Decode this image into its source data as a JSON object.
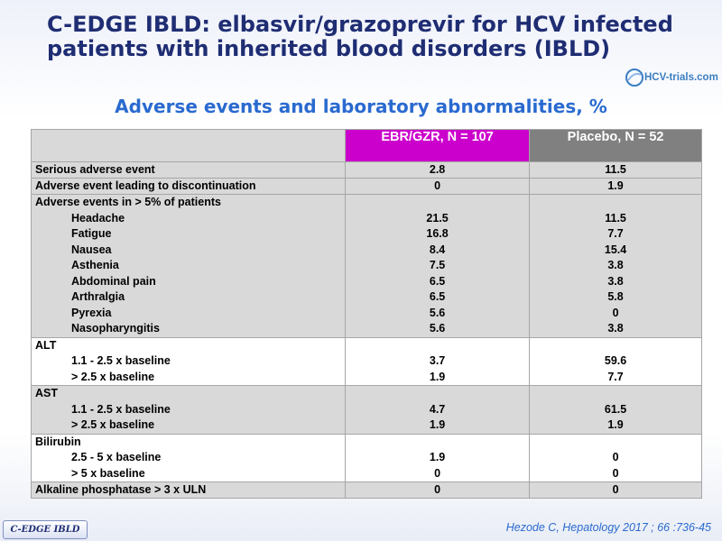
{
  "title_line1": "C-EDGE IBLD: elbasvir/grazoprevir for HCV infected",
  "title_line2": "patients with inherited blood disorders (IBLD)",
  "logo": "HCV-trials.com",
  "subtitle": "Adverse events and laboratory abnormalities, %",
  "table": {
    "col_ebr": "EBR/GZR, N = 107",
    "col_placebo": "Placebo, N = 52",
    "serious": {
      "label": "Serious adverse event",
      "ebr": "2.8",
      "placebo": "11.5"
    },
    "discontinuation": {
      "label": "Adverse event leading to discontinuation",
      "ebr": "0",
      "placebo": "1.9"
    },
    "ae_group": {
      "label": "Adverse events in > 5% of patients",
      "items": [
        {
          "label": "Headache",
          "ebr": "21.5",
          "placebo": "11.5"
        },
        {
          "label": "Fatigue",
          "ebr": "16.8",
          "placebo": "7.7"
        },
        {
          "label": "Nausea",
          "ebr": "8.4",
          "placebo": "15.4"
        },
        {
          "label": "Asthenia",
          "ebr": "7.5",
          "placebo": "3.8"
        },
        {
          "label": "Abdominal pain",
          "ebr": "6.5",
          "placebo": "3.8"
        },
        {
          "label": "Arthralgia",
          "ebr": "6.5",
          "placebo": "5.8"
        },
        {
          "label": "Pyrexia",
          "ebr": "5.6",
          "placebo": "0"
        },
        {
          "label": "Nasopharyngitis",
          "ebr": "5.6",
          "placebo": "3.8"
        }
      ]
    },
    "alt": {
      "label": "ALT",
      "items": [
        {
          "label": "1.1 - 2.5 x baseline",
          "ebr": "3.7",
          "placebo": "59.6"
        },
        {
          "label": "> 2.5 x baseline",
          "ebr": "1.9",
          "placebo": "7.7"
        }
      ]
    },
    "ast": {
      "label": "AST",
      "items": [
        {
          "label": "1.1 - 2.5 x baseline",
          "ebr": "4.7",
          "placebo": "61.5"
        },
        {
          "label": "> 2.5 x baseline",
          "ebr": "1.9",
          "placebo": "1.9"
        }
      ]
    },
    "bilirubin": {
      "label": "Bilirubin",
      "items": [
        {
          "label": "2.5 - 5 x baseline",
          "ebr": "1.9",
          "placebo": "0"
        },
        {
          "label": "> 5 x baseline",
          "ebr": "0",
          "placebo": "0"
        }
      ]
    },
    "alk": {
      "label": "Alkaline phosphatase > 3 x ULN",
      "ebr": "0",
      "placebo": "0"
    }
  },
  "footer_label": "C-EDGE IBLD",
  "citation": "Hezode C, Hepatology 2017 ; 66 :736-45",
  "colors": {
    "title": "#1f2d73",
    "accent": "#2a6ad0",
    "ebr_header": "#cc00cc",
    "placebo_header": "#808080",
    "row_grey": "#d9d9d9"
  },
  "icons": [
    "hcv-trials-logo-icon"
  ]
}
